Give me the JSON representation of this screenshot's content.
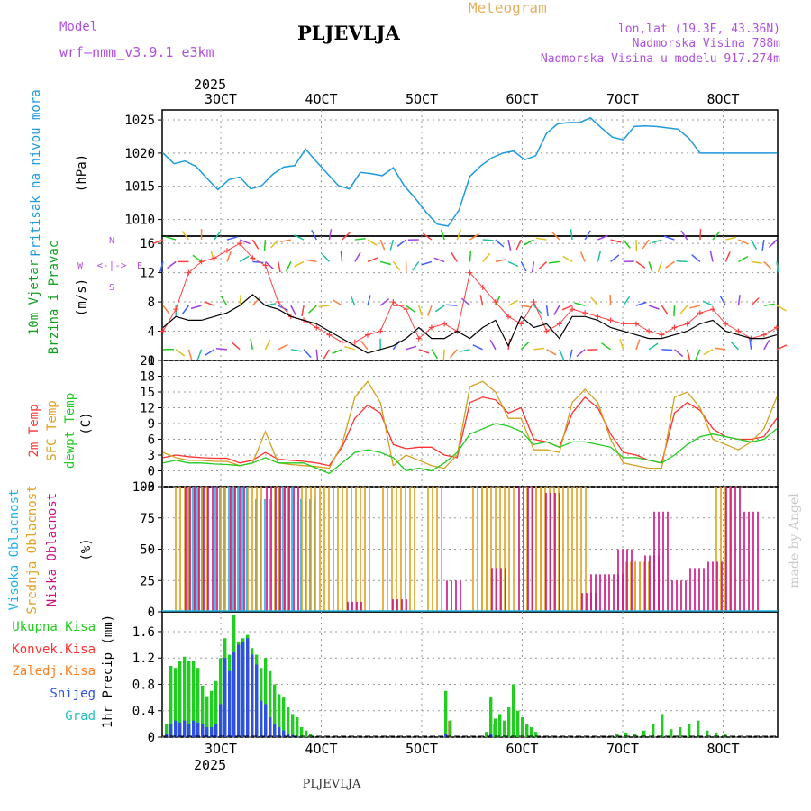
{
  "header": {
    "model_label": "Model",
    "model_name": "wrf—nmm_v3.9.1  e3km",
    "station": "PLJEVLJA",
    "meteogram": "Meteogram",
    "lonlat": "lon,lat (19.3E, 43.36N)",
    "elevation": "Nadmorska Visina 788m",
    "model_elevation": "Nadmorska Visina u modelu 917.274m",
    "footer_station": "PLJEVLJA",
    "credit": "made by Angel"
  },
  "colors": {
    "pressure": "#1e9bdc",
    "wind_speed": "#000000",
    "gust": "#ff4040",
    "t2m": "#ff3030",
    "sfc": "#d4a020",
    "dewpt": "#20cc20",
    "high_cloud": "#20b0e0",
    "mid_cloud": "#e0a020",
    "low_cloud": "#cc1080",
    "total_precip": "#22cc22",
    "conv_precip": "#ff3030",
    "frz_precip": "#ff8020",
    "snow": "#3050e0",
    "hail": "#20c0c0",
    "wind_label": "#10a020",
    "temp_label_2m": "#ff3030",
    "temp_label_sfc": "#e0a020",
    "temp_label_dew": "#20cc20",
    "cloud_label_high": "#20b0e0",
    "cloud_label_mid": "#e0a020",
    "cloud_label_low": "#cc1080",
    "legend_purple": "#b050e0"
  },
  "chart_data": [
    {
      "type": "line",
      "panel": "pressure",
      "ylabel_title": "Pritisak na nivou mora",
      "ylabel_units": "(hPa)",
      "ylim": [
        1007.5,
        1026.5
      ],
      "yticks": [
        1010,
        1015,
        1020,
        1025
      ],
      "ytick_labels": [
        "1010",
        "1015",
        "1020",
        "1025"
      ],
      "x": [
        0,
        0.125,
        0.25,
        0.375,
        0.5,
        0.625,
        0.75,
        0.875,
        1.0,
        1.125,
        1.25,
        1.375,
        1.5,
        1.625,
        1.75,
        1.875,
        2.0,
        2.125,
        2.25,
        2.375,
        2.5,
        2.625,
        2.75,
        2.875,
        3.0,
        3.125,
        3.25,
        3.375,
        3.5,
        3.625,
        3.75,
        3.875,
        4.0,
        4.125,
        4.25,
        4.375,
        4.5,
        4.625,
        4.75,
        4.875,
        5.0,
        5.125,
        5.25,
        5.375,
        5.5,
        5.625,
        5.75,
        5.875,
        6.0,
        6.125,
        6.25,
        6.375,
        6.5,
        6.625,
        6.75,
        6.875,
        7.0
      ],
      "series": [
        {
          "name": "MSLP",
          "values": [
            1020.0,
            1018.4,
            1018.8,
            1018.0,
            1016.2,
            1014.5,
            1016.0,
            1016.4,
            1014.6,
            1015.1,
            1016.8,
            1017.9,
            1018.1,
            1020.6,
            1018.7,
            1016.9,
            1015.1,
            1014.6,
            1017.1,
            1016.9,
            1016.6,
            1017.8,
            1015.1,
            1013.2,
            1011.1,
            1009.3,
            1009.0,
            1011.4,
            1016.5,
            1018.1,
            1019.3,
            1020.0,
            1020.3,
            1019.0,
            1019.6,
            1023.0,
            1024.4,
            1024.6,
            1024.6,
            1025.3,
            1023.8,
            1022.4,
            1022.0,
            1024.0,
            1024.1,
            1024.0,
            1023.8,
            1023.6,
            1022.2,
            1020.0,
            1020.0,
            1020.0,
            1020.0,
            1020.0,
            1020.0,
            1020.0,
            1020.0
          ]
        }
      ]
    },
    {
      "type": "line",
      "panel": "wind",
      "ylabel_title": "10m Vjetar",
      "ylabel_title2": "Brzina i Pravac",
      "ylabel_units": "(m/s)",
      "legend_glyph": "<-|->",
      "legend_w": "W",
      "legend_e": "E",
      "legend_n": "N",
      "legend_s": "S",
      "ylim": [
        0,
        17
      ],
      "yticks": [
        0,
        4,
        8,
        12,
        16
      ],
      "ytick_labels": [
        "0",
        "4",
        "8",
        "12",
        "16"
      ],
      "x": [
        0,
        0.125,
        0.25,
        0.375,
        0.5,
        0.625,
        0.75,
        0.875,
        1.0,
        1.125,
        1.25,
        1.375,
        1.5,
        1.625,
        1.75,
        1.875,
        2.0,
        2.125,
        2.25,
        2.375,
        2.5,
        2.625,
        2.75,
        2.875,
        3.0,
        3.125,
        3.25,
        3.375,
        3.5,
        3.625,
        3.75,
        3.875,
        4.0,
        4.125,
        4.25,
        4.375,
        4.5,
        4.625,
        4.75,
        4.875,
        5.0,
        5.125,
        5.25,
        5.375,
        5.5,
        5.625,
        5.75,
        5.875,
        6.0
      ],
      "series": [
        {
          "name": "10m wind speed",
          "values": [
            4.5,
            6.0,
            5.5,
            5.5,
            6.0,
            6.5,
            7.5,
            9.0,
            7.5,
            7.0,
            6.0,
            5.5,
            5.0,
            4.0,
            3.0,
            2.0,
            1.0,
            1.5,
            2.0,
            3.0,
            4.5,
            3.0,
            3.0,
            4.0,
            3.0,
            4.5,
            5.5,
            2.0,
            6.0,
            4.5,
            5.0,
            3.0,
            6.0,
            6.0,
            5.5,
            4.5,
            4.0,
            3.5,
            3.0,
            3.0,
            3.5,
            4.0,
            5.0,
            5.5,
            4.0,
            3.5,
            3.0,
            3.0,
            3.5
          ]
        },
        {
          "name": "gust",
          "values": [
            4.0,
            7.0,
            12.0,
            13.5,
            14.0,
            15.0,
            16.0,
            14.0,
            13.0,
            8.0,
            6.0,
            5.5,
            4.5,
            3.5,
            2.5,
            2.5,
            3.5,
            4.0,
            8.0,
            7.0,
            3.0,
            4.5,
            5.0,
            4.0,
            12.0,
            10.0,
            8.0,
            6.0,
            5.0,
            8.0,
            4.0,
            5.0,
            7.0,
            6.5,
            6.0,
            5.5,
            5.0,
            5.0,
            4.0,
            3.5,
            4.5,
            5.0,
            6.5,
            7.0,
            5.0,
            4.0,
            3.0,
            3.5,
            4.5
          ]
        }
      ]
    },
    {
      "type": "line",
      "panel": "temperature",
      "ylabel_2m": "2m Temp",
      "ylabel_sfc": "SFC Temp",
      "ylabel_dew": "dewpt Temp",
      "ylabel_units": "(C)",
      "ylim": [
        -3,
        21
      ],
      "yticks": [
        -3,
        0,
        3,
        6,
        9,
        12,
        15,
        18,
        21
      ],
      "ytick_labels": [
        "-3",
        "0",
        "3",
        "6",
        "9",
        "12",
        "15",
        "18",
        "21"
      ],
      "x": [
        0,
        0.125,
        0.25,
        0.375,
        0.5,
        0.625,
        0.75,
        0.875,
        1.0,
        1.125,
        1.25,
        1.375,
        1.5,
        1.625,
        1.75,
        1.875,
        2.0,
        2.125,
        2.25,
        2.375,
        2.5,
        2.625,
        2.75,
        2.875,
        3.0,
        3.125,
        3.25,
        3.375,
        3.5,
        3.625,
        3.75,
        3.875,
        4.0,
        4.125,
        4.25,
        4.375,
        4.5,
        4.625,
        4.75,
        4.875,
        5.0,
        5.125,
        5.25,
        5.375,
        5.5,
        5.625,
        5.75,
        5.875,
        6.0
      ],
      "series": [
        {
          "name": "2m Temp",
          "values": [
            2.5,
            3.0,
            2.7,
            2.5,
            2.4,
            2.4,
            1.5,
            2.0,
            3.5,
            2.2,
            2.0,
            1.8,
            1.5,
            1.0,
            4.5,
            10.0,
            12.5,
            11.0,
            5.0,
            4.2,
            4.5,
            4.5,
            3.0,
            2.5,
            13.0,
            14.0,
            13.5,
            11.0,
            12.0,
            6.0,
            5.5,
            4.5,
            11.0,
            14.0,
            12.0,
            7.0,
            3.5,
            3.0,
            2.0,
            1.5,
            11.0,
            13.0,
            11.5,
            8.0,
            6.5,
            6.0,
            6.0,
            6.5,
            10.0
          ]
        },
        {
          "name": "SFC Temp",
          "values": [
            3.5,
            2.5,
            2.0,
            2.0,
            1.8,
            1.8,
            1.0,
            1.5,
            7.5,
            1.5,
            1.2,
            1.0,
            0.8,
            0.5,
            5.0,
            14.0,
            17.0,
            13.0,
            1.0,
            3.0,
            2.0,
            1.0,
            0.5,
            3.0,
            16.0,
            17.0,
            15.0,
            10.0,
            10.0,
            4.0,
            4.0,
            3.5,
            13.0,
            15.5,
            13.0,
            6.0,
            1.5,
            1.0,
            0.5,
            0.5,
            14.0,
            15.0,
            12.0,
            6.0,
            5.0,
            4.0,
            5.5,
            8.0,
            14.0
          ]
        },
        {
          "name": "dewpt Temp",
          "values": [
            1.5,
            2.0,
            1.5,
            1.5,
            1.3,
            1.2,
            1.0,
            1.5,
            2.5,
            1.5,
            1.5,
            1.5,
            0.5,
            -0.5,
            1.5,
            3.5,
            4.0,
            3.5,
            2.5,
            0.0,
            0.5,
            0.0,
            1.5,
            3.5,
            7.0,
            8.0,
            9.0,
            8.5,
            7.5,
            5.0,
            5.5,
            4.5,
            5.5,
            5.5,
            5.0,
            4.5,
            2.5,
            2.5,
            2.0,
            1.5,
            3.0,
            5.0,
            6.5,
            7.0,
            6.5,
            6.0,
            5.5,
            6.0,
            8.0
          ]
        }
      ]
    },
    {
      "type": "bar",
      "panel": "clouds",
      "ylabel_high": "Visoka Oblacnost",
      "ylabel_mid": "Srednja Oblacnost",
      "ylabel_low": "Niska Oblacnost",
      "ylabel_units": "(%)",
      "ylim": [
        0,
        100
      ],
      "yticks": [
        0,
        25,
        50,
        75,
        100
      ],
      "ytick_labels": [
        "0",
        "25",
        "50",
        "75",
        "100"
      ],
      "series": [
        {
          "name": "Visoka Oblacnost",
          "x": [
            0.25,
            0.55,
            0.75,
            1.0,
            1.25,
            1.5
          ],
          "values": [
            100,
            100,
            100,
            90,
            100,
            90
          ]
        },
        {
          "name": "Srednja Oblacnost",
          "x": [
            0.1,
            0.3,
            0.6,
            0.9,
            1.2,
            1.5,
            1.7,
            1.9,
            2.1,
            2.4,
            2.6,
            2.9,
            3.4,
            3.5,
            3.7,
            4.0,
            4.1,
            4.3,
            4.5,
            5.1,
            5.2,
            6.1
          ],
          "values": [
            100,
            100,
            100,
            100,
            100,
            100,
            100,
            100,
            100,
            100,
            100,
            100,
            100,
            100,
            100,
            100,
            100,
            100,
            100,
            40,
            40,
            100
          ]
        },
        {
          "name": "Niska Oblacnost",
          "x": [
            0.2,
            0.4,
            0.7,
            1.1,
            1.3,
            2.0,
            2.5,
            3.1,
            3.6,
            3.9,
            4.2,
            4.6,
            4.7,
            4.9,
            5.0,
            5.3,
            5.4,
            5.6,
            5.8,
            6.0,
            6.2,
            6.4
          ],
          "values": [
            100,
            100,
            100,
            100,
            100,
            8,
            10,
            25,
            35,
            100,
            95,
            15,
            30,
            30,
            50,
            45,
            80,
            25,
            35,
            40,
            100,
            80
          ]
        }
      ]
    },
    {
      "type": "bar",
      "panel": "precipitation",
      "ylabel_units": "1hr Precip (mm)",
      "legend_total": "Ukupna Kisa",
      "legend_conv": "Konvek.Kisa",
      "legend_frz": "Zaledj.Kisa",
      "legend_snow": "Snijeg",
      "legend_hail": "Grad",
      "ylim": [
        0,
        1.9
      ],
      "yticks": [
        0,
        0.4,
        0.8,
        1.2,
        1.6
      ],
      "ytick_labels": [
        "0",
        "0.4",
        "0.8",
        "1.2",
        "1.6"
      ],
      "x": [
        0.0,
        0.05,
        0.1,
        0.15,
        0.2,
        0.25,
        0.3,
        0.35,
        0.4,
        0.45,
        0.5,
        0.55,
        0.6,
        0.65,
        0.7,
        0.75,
        0.8,
        0.85,
        0.9,
        0.95,
        1.0,
        1.05,
        1.1,
        1.15,
        1.2,
        1.25,
        1.3,
        1.35,
        1.4,
        1.45,
        1.5,
        1.55,
        1.6,
        3.1,
        3.15,
        3.55,
        3.6,
        3.65,
        3.7,
        3.75,
        3.8,
        3.85,
        3.9,
        3.95,
        4.0,
        4.05,
        4.1,
        5.0,
        5.1,
        5.2,
        5.3,
        5.4,
        5.5,
        5.6,
        5.7,
        5.8,
        5.9,
        6.0,
        6.1,
        6.2
      ],
      "series": [
        {
          "name": "Ukupna Kisa",
          "values": [
            0.2,
            1.08,
            1.05,
            1.15,
            1.22,
            1.15,
            1.15,
            1.05,
            0.78,
            0.62,
            0.7,
            0.85,
            1.2,
            1.5,
            1.25,
            1.85,
            1.45,
            1.5,
            1.55,
            1.35,
            1.25,
            1.05,
            1.2,
            1.0,
            0.8,
            0.65,
            0.6,
            0.45,
            0.35,
            0.3,
            0.15,
            0.1,
            0.05,
            0.7,
            0.25,
            0.08,
            0.6,
            0.28,
            0.35,
            0.25,
            0.45,
            0.8,
            0.4,
            0.3,
            0.2,
            0.15,
            0.08,
            0.05,
            0.07,
            0.05,
            0.1,
            0.2,
            0.35,
            0.12,
            0.15,
            0.2,
            0.25,
            0.1,
            0.07,
            0.05
          ]
        },
        {
          "name": "Snijeg",
          "values": [
            0.05,
            0.2,
            0.25,
            0.22,
            0.25,
            0.2,
            0.25,
            0.22,
            0.2,
            0.15,
            0.15,
            0.2,
            0.5,
            1.2,
            1.0,
            1.3,
            1.4,
            1.45,
            1.5,
            1.25,
            1.1,
            0.55,
            0.5,
            0.3,
            0.2,
            0.15,
            0.1,
            0.05,
            0.03,
            0.02,
            0.0,
            0.0,
            0.0,
            0.05,
            0.0,
            0.0,
            0.05,
            0.0,
            0.0,
            0.0,
            0.0,
            0.0,
            0.0,
            0.0,
            0.0,
            0.0,
            0.0,
            0.0,
            0.0,
            0.0,
            0.0,
            0.0,
            0.0,
            0.0,
            0.0,
            0.0,
            0.0,
            0.0,
            0.0,
            0.0
          ]
        },
        {
          "name": "Konvek.Kisa",
          "values": [
            0,
            0,
            0,
            0,
            0,
            0,
            0,
            0,
            0,
            0,
            0,
            0,
            0,
            0,
            0,
            0,
            0,
            0,
            0,
            0,
            0,
            0,
            0,
            0,
            0,
            0,
            0,
            0,
            0,
            0,
            0,
            0,
            0,
            0.25,
            0.0,
            0.0,
            0.2,
            0.0,
            0.0,
            0.0,
            0.0,
            0.0,
            0.0,
            0.0,
            0.0,
            0.0,
            0.0,
            0,
            0,
            0,
            0,
            0,
            0,
            0,
            0,
            0,
            0,
            0,
            0,
            0
          ]
        }
      ]
    }
  ],
  "time_axis": {
    "year_label": "2025",
    "dates": [
      "3OCT",
      "4OCT",
      "5OCT",
      "6OCT",
      "7OCT",
      "8OCT"
    ]
  }
}
